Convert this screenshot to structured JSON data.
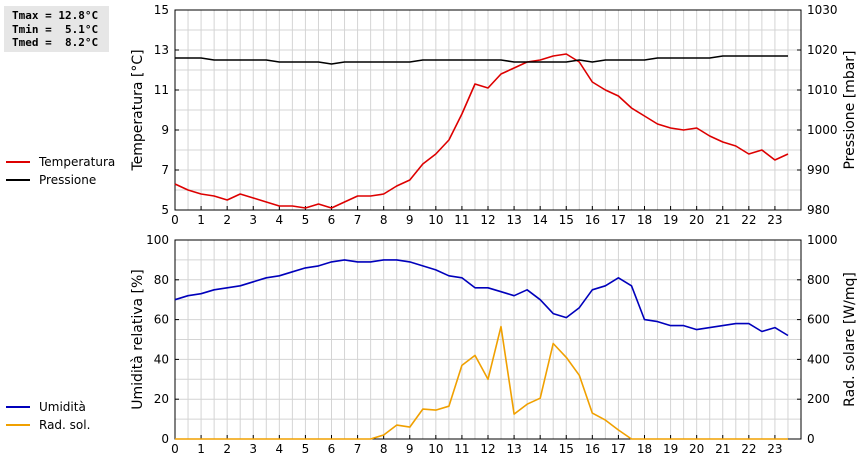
{
  "stats": {
    "tmax": "Tmax = 12.8°C",
    "tmin": "Tmin =  5.1°C",
    "tmed": "Tmed =  8.2°C"
  },
  "legend_top": [
    {
      "label": "Temperatura",
      "color": "#dd0000"
    },
    {
      "label": "Pressione",
      "color": "#000000"
    }
  ],
  "legend_bottom": [
    {
      "label": "Umidità",
      "color": "#0000bb"
    },
    {
      "label": "Rad. sol.",
      "color": "#f0a000"
    }
  ],
  "chart_data": [
    {
      "type": "line",
      "ylabel": "Temperatura [°C]",
      "y2label": "Pressione [mbar]",
      "xlim": [
        0,
        24
      ],
      "xticks": [
        "0",
        "1",
        "2",
        "3",
        "4",
        "5",
        "6",
        "7",
        "8",
        "9",
        "10",
        "11",
        "12",
        "13",
        "14",
        "15",
        "16",
        "17",
        "18",
        "19",
        "20",
        "21",
        "22",
        "23"
      ],
      "ylim": [
        5,
        15
      ],
      "yticks": [
        "5",
        "7",
        "9",
        "11",
        "13",
        "15"
      ],
      "y2lim": [
        980,
        1030
      ],
      "y2ticks": [
        "980",
        "990",
        "1000",
        "1010",
        "1020",
        "1030"
      ],
      "grid": true,
      "series": [
        {
          "name": "Temperatura",
          "axis": "left",
          "color": "#dd0000",
          "x": [
            0,
            0.5,
            1,
            1.5,
            2,
            2.5,
            3,
            3.5,
            4,
            4.5,
            5,
            5.5,
            6,
            6.5,
            7,
            7.5,
            8,
            8.5,
            9,
            9.5,
            10,
            10.5,
            11,
            11.5,
            12,
            12.5,
            13,
            13.5,
            14,
            14.5,
            15,
            15.5,
            16,
            16.5,
            17,
            17.5,
            18,
            18.5,
            19,
            19.5,
            20,
            20.5,
            21,
            21.5,
            22,
            22.5,
            23,
            23.5
          ],
          "y": [
            6.3,
            6.0,
            5.8,
            5.7,
            5.5,
            5.8,
            5.6,
            5.4,
            5.2,
            5.2,
            5.1,
            5.3,
            5.1,
            5.4,
            5.7,
            5.7,
            5.8,
            6.2,
            6.5,
            7.3,
            7.8,
            8.5,
            9.8,
            11.3,
            11.1,
            11.8,
            12.1,
            12.4,
            12.5,
            12.7,
            12.8,
            12.4,
            11.4,
            11.0,
            10.7,
            10.1,
            9.7,
            9.3,
            9.1,
            9.0,
            9.1,
            8.7,
            8.4,
            8.2,
            7.8,
            8.0,
            7.5,
            7.8
          ]
        },
        {
          "name": "Pressione",
          "axis": "right",
          "color": "#000000",
          "x": [
            0,
            1,
            1.5,
            3.5,
            4,
            5.5,
            6,
            6.5,
            8,
            9,
            9.5,
            12.5,
            13,
            15,
            15.5,
            16,
            16.5,
            18,
            18.5,
            20.5,
            21,
            23.5
          ],
          "y": [
            1018,
            1018,
            1017.5,
            1017.5,
            1017,
            1017,
            1016.5,
            1017,
            1017,
            1017,
            1017.5,
            1017.5,
            1017,
            1017,
            1017.5,
            1017,
            1017.5,
            1017.5,
            1018,
            1018,
            1018.5,
            1018.5
          ]
        }
      ]
    },
    {
      "type": "line",
      "ylabel": "Umidità relativa [%]",
      "y2label": "Rad. solare [W/mq]",
      "xlim": [
        0,
        24
      ],
      "xticks": [
        "0",
        "1",
        "2",
        "3",
        "4",
        "5",
        "6",
        "7",
        "8",
        "9",
        "10",
        "11",
        "12",
        "13",
        "14",
        "15",
        "16",
        "17",
        "18",
        "19",
        "20",
        "21",
        "22",
        "23"
      ],
      "ylim": [
        0,
        100
      ],
      "yticks": [
        "0",
        "20",
        "40",
        "60",
        "80",
        "100"
      ],
      "y2lim": [
        0,
        1000
      ],
      "y2ticks": [
        "0",
        "200",
        "400",
        "600",
        "800",
        "1000"
      ],
      "grid": true,
      "series": [
        {
          "name": "Umidità",
          "axis": "left",
          "color": "#0000bb",
          "x": [
            0,
            0.5,
            1,
            1.5,
            2,
            2.5,
            3,
            3.5,
            4,
            4.5,
            5,
            5.5,
            6,
            6.5,
            7,
            7.5,
            8,
            8.5,
            9,
            9.5,
            10,
            10.5,
            11,
            11.5,
            12,
            12.5,
            13,
            13.5,
            14,
            14.5,
            15,
            15.5,
            16,
            16.5,
            17,
            17.5,
            18,
            18.5,
            19,
            19.5,
            20,
            20.5,
            21,
            21.5,
            22,
            22.5,
            23,
            23.5
          ],
          "y": [
            70,
            72,
            73,
            75,
            76,
            77,
            79,
            81,
            82,
            84,
            86,
            87,
            89,
            90,
            89,
            89,
            90,
            90,
            89,
            87,
            85,
            82,
            81,
            76,
            76,
            74,
            72,
            75,
            70,
            63,
            61,
            66,
            75,
            77,
            81,
            77,
            60,
            59,
            57,
            57,
            55,
            56,
            57,
            58,
            58,
            54,
            56,
            52
          ]
        },
        {
          "name": "Rad. sol.",
          "axis": "right",
          "color": "#f0a000",
          "x": [
            0,
            7.5,
            8,
            8.5,
            9,
            9.5,
            10,
            10.5,
            11,
            11.5,
            12,
            12.5,
            13,
            13.5,
            14,
            14.5,
            15,
            15.5,
            16,
            16.5,
            17,
            17.5,
            23.5
          ],
          "y": [
            0,
            0,
            20,
            70,
            60,
            150,
            145,
            165,
            370,
            420,
            300,
            565,
            125,
            175,
            205,
            480,
            410,
            320,
            130,
            95,
            45,
            0,
            0
          ]
        }
      ]
    }
  ]
}
